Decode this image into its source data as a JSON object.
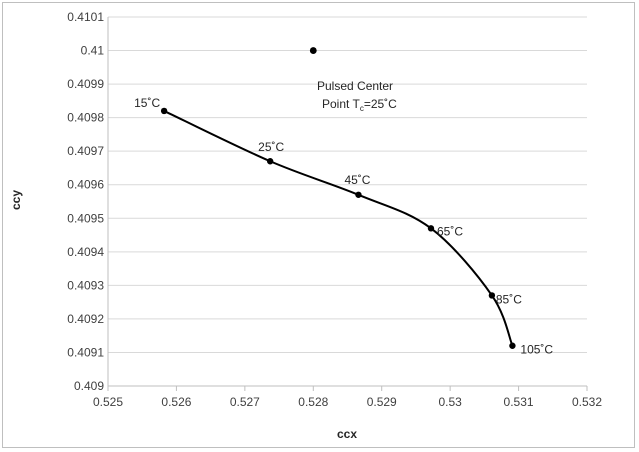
{
  "chart_data": {
    "type": "scatter",
    "xlabel": "ccx",
    "ylabel": "ccy",
    "xlim": [
      0.525,
      0.532
    ],
    "ylim": [
      0.409,
      0.4101
    ],
    "x_ticks": [
      "0.525",
      "0.526",
      "0.527",
      "0.528",
      "0.529",
      "0.53",
      "0.531",
      "0.532"
    ],
    "y_ticks": [
      "0.409",
      "0.4091",
      "0.4092",
      "0.4093",
      "0.4094",
      "0.4095",
      "0.4096",
      "0.4097",
      "0.4098",
      "0.4099",
      "0.41",
      "0.4101"
    ],
    "grid": "horizontal",
    "series": [
      {
        "style": "line-with-markers",
        "color": "#000000",
        "points": [
          {
            "x": 0.52582,
            "y": 0.40982,
            "label": "15˚C"
          },
          {
            "x": 0.52737,
            "y": 0.40967,
            "label": "25˚C"
          },
          {
            "x": 0.52866,
            "y": 0.40957,
            "label": "45˚C"
          },
          {
            "x": 0.52972,
            "y": 0.40947,
            "label": "65˚C"
          },
          {
            "x": 0.53061,
            "y": 0.40927,
            "label": "85˚C"
          },
          {
            "x": 0.53091,
            "y": 0.40912,
            "label": "105˚C"
          }
        ]
      },
      {
        "style": "marker-only",
        "color": "#000000",
        "points": [
          {
            "x": 0.528,
            "y": 0.41
          }
        ],
        "annotation": {
          "line1": "Pulsed Center",
          "line2_prefix": "Point T",
          "line2_sub": "c",
          "line2_suffix": "=25˚C"
        }
      }
    ]
  }
}
